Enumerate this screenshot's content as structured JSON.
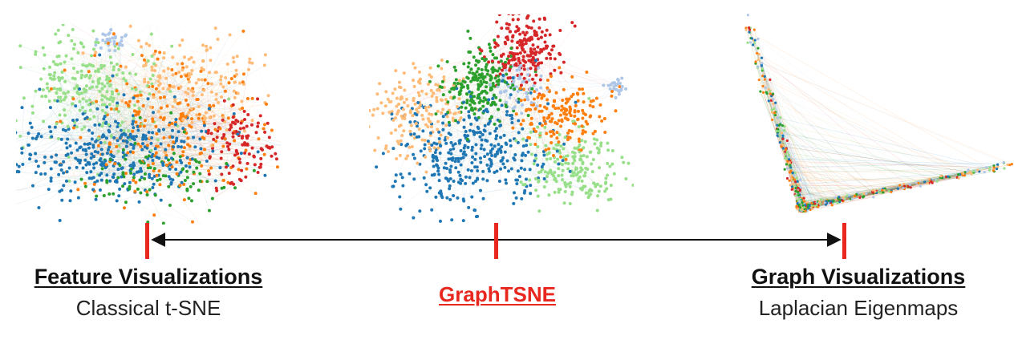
{
  "colors": {
    "accent": "#e8281e",
    "axis": "#111111",
    "clusters": [
      "#1f77b4",
      "#ff7f0e",
      "#2ca02c",
      "#d62728",
      "#aec7e8",
      "#ffbb78",
      "#98df8a"
    ]
  },
  "labels": {
    "left": {
      "title": "Feature Visualizations",
      "subtitle": "Classical t-SNE"
    },
    "middle": {
      "title": "GraphTSNE"
    },
    "right": {
      "title": "Graph Visualizations",
      "subtitle": "Laplacian Eigenmaps"
    }
  },
  "panels": {
    "left": "feature-visualization-scatter",
    "middle": "graphtsne-scatter",
    "right": "graph-visualization-scatter"
  }
}
